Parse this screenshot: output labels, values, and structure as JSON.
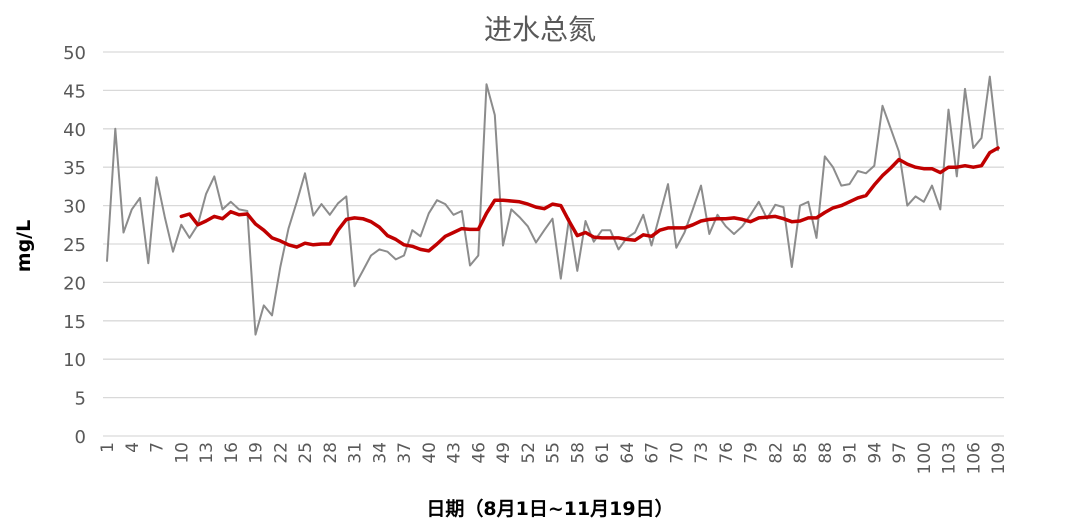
{
  "chart_data": {
    "type": "line",
    "title": "进水总氮",
    "xlabel": "日期（8月1日~11月19日）",
    "ylabel": "mg/L",
    "ylim": [
      0,
      50
    ],
    "yticks": [
      0,
      5,
      10,
      15,
      20,
      25,
      30,
      35,
      40,
      45,
      50
    ],
    "xticks": [
      1,
      4,
      7,
      10,
      13,
      16,
      19,
      22,
      25,
      28,
      31,
      34,
      37,
      40,
      43,
      46,
      49,
      52,
      55,
      58,
      61,
      64,
      67,
      70,
      73,
      76,
      79,
      82,
      85,
      88,
      91,
      94,
      97,
      100,
      103,
      106,
      109
    ],
    "grid": true,
    "legend": "none",
    "x_start": 1,
    "series": [
      {
        "color": "#8c8c8c",
        "values": [
          22.8,
          40,
          26.5,
          29.5,
          31,
          22.5,
          33.7,
          28.5,
          24,
          27.5,
          25.8,
          27.5,
          31.5,
          33.8,
          29.5,
          30.5,
          29.5,
          29.3,
          13.2,
          17,
          15.7,
          22,
          27,
          30.5,
          34.2,
          28.7,
          30.2,
          28.8,
          30.3,
          31.2,
          19.5,
          21.5,
          23.5,
          24.3,
          24,
          23,
          23.5,
          26.8,
          26,
          29,
          30.7,
          30.2,
          28.8,
          29.3,
          22.2,
          23.5,
          45.8,
          41.8,
          24.8,
          29.5,
          28.5,
          27.3,
          25.2,
          26.8,
          28.3,
          20.5,
          28.3,
          21.5,
          28,
          25.3,
          26.8,
          26.8,
          24.3,
          25.8,
          26.5,
          28.8,
          24.8,
          28.8,
          32.8,
          24.5,
          26.5,
          29.5,
          32.6,
          26.3,
          28.8,
          27.3,
          26.3,
          27.3,
          28.8,
          30.5,
          28.3,
          30.1,
          29.8,
          22,
          30,
          30.5,
          25.8,
          36.4,
          35,
          32.6,
          32.8,
          34.5,
          34.2,
          35.2,
          43,
          40,
          37,
          30,
          31.2,
          30.5,
          32.6,
          29.5,
          42.5,
          33.8,
          45.2,
          37.5,
          38.8,
          46.8,
          37.2
        ]
      },
      {
        "color": "#c00000",
        "start_index": 10,
        "values": [
          28.6,
          28.9,
          27.5,
          28,
          28.6,
          28.3,
          29.2,
          28.8,
          28.9,
          27.6,
          26.8,
          25.8,
          25.4,
          24.9,
          24.6,
          25.1,
          24.9,
          25,
          25,
          26.8,
          28.2,
          28.4,
          28.3,
          27.9,
          27.2,
          26.1,
          25.6,
          24.9,
          24.7,
          24.3,
          24.1,
          25,
          26,
          26.5,
          27,
          26.9,
          26.9,
          29,
          30.7,
          30.7,
          30.6,
          30.5,
          30.2,
          29.8,
          29.6,
          30.2,
          30,
          28,
          26.1,
          26.5,
          25.9,
          25.8,
          25.8,
          25.8,
          25.6,
          25.5,
          26.2,
          26,
          26.8,
          27.1,
          27.1,
          27.1,
          27.5,
          28,
          28.2,
          28.3,
          28.3,
          28.4,
          28.2,
          27.9,
          28.4,
          28.5,
          28.6,
          28.3,
          27.9,
          28,
          28.4,
          28.4,
          29.1,
          29.7,
          30,
          30.5,
          31,
          31.3,
          32.7,
          33.9,
          34.9,
          36,
          35.4,
          35,
          34.8,
          34.8,
          34.3,
          35,
          35,
          35.2,
          35,
          35.2,
          36.9,
          37.5
        ]
      }
    ]
  }
}
